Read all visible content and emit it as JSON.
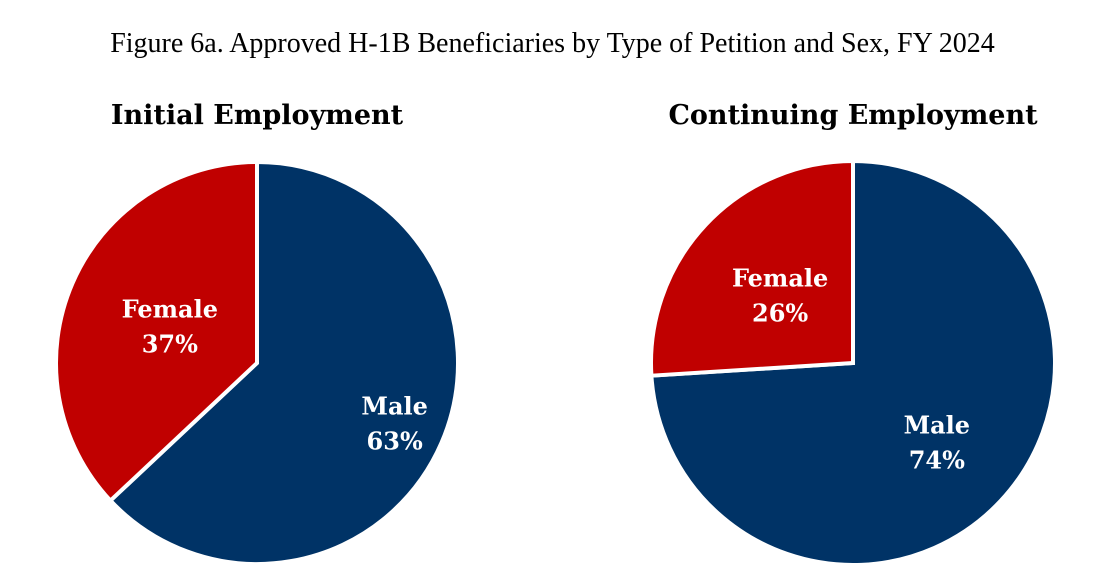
{
  "figure_title": "Figure 6a. Approved H-1B Beneficiaries by Type of Petition and Sex, FY 2024",
  "colors": {
    "female": "#C00000",
    "male": "#003366",
    "slice_border": "#ffffff"
  },
  "chart_data": [
    {
      "type": "pie",
      "title": "Initial Employment",
      "slices": [
        {
          "label": "Male",
          "value": 63,
          "value_label": "63%"
        },
        {
          "label": "Female",
          "value": 37,
          "value_label": "37%"
        }
      ]
    },
    {
      "type": "pie",
      "title": "Continuing Employment",
      "slices": [
        {
          "label": "Male",
          "value": 74,
          "value_label": "74%"
        },
        {
          "label": "Female",
          "value": 26,
          "value_label": "26%"
        }
      ]
    }
  ]
}
